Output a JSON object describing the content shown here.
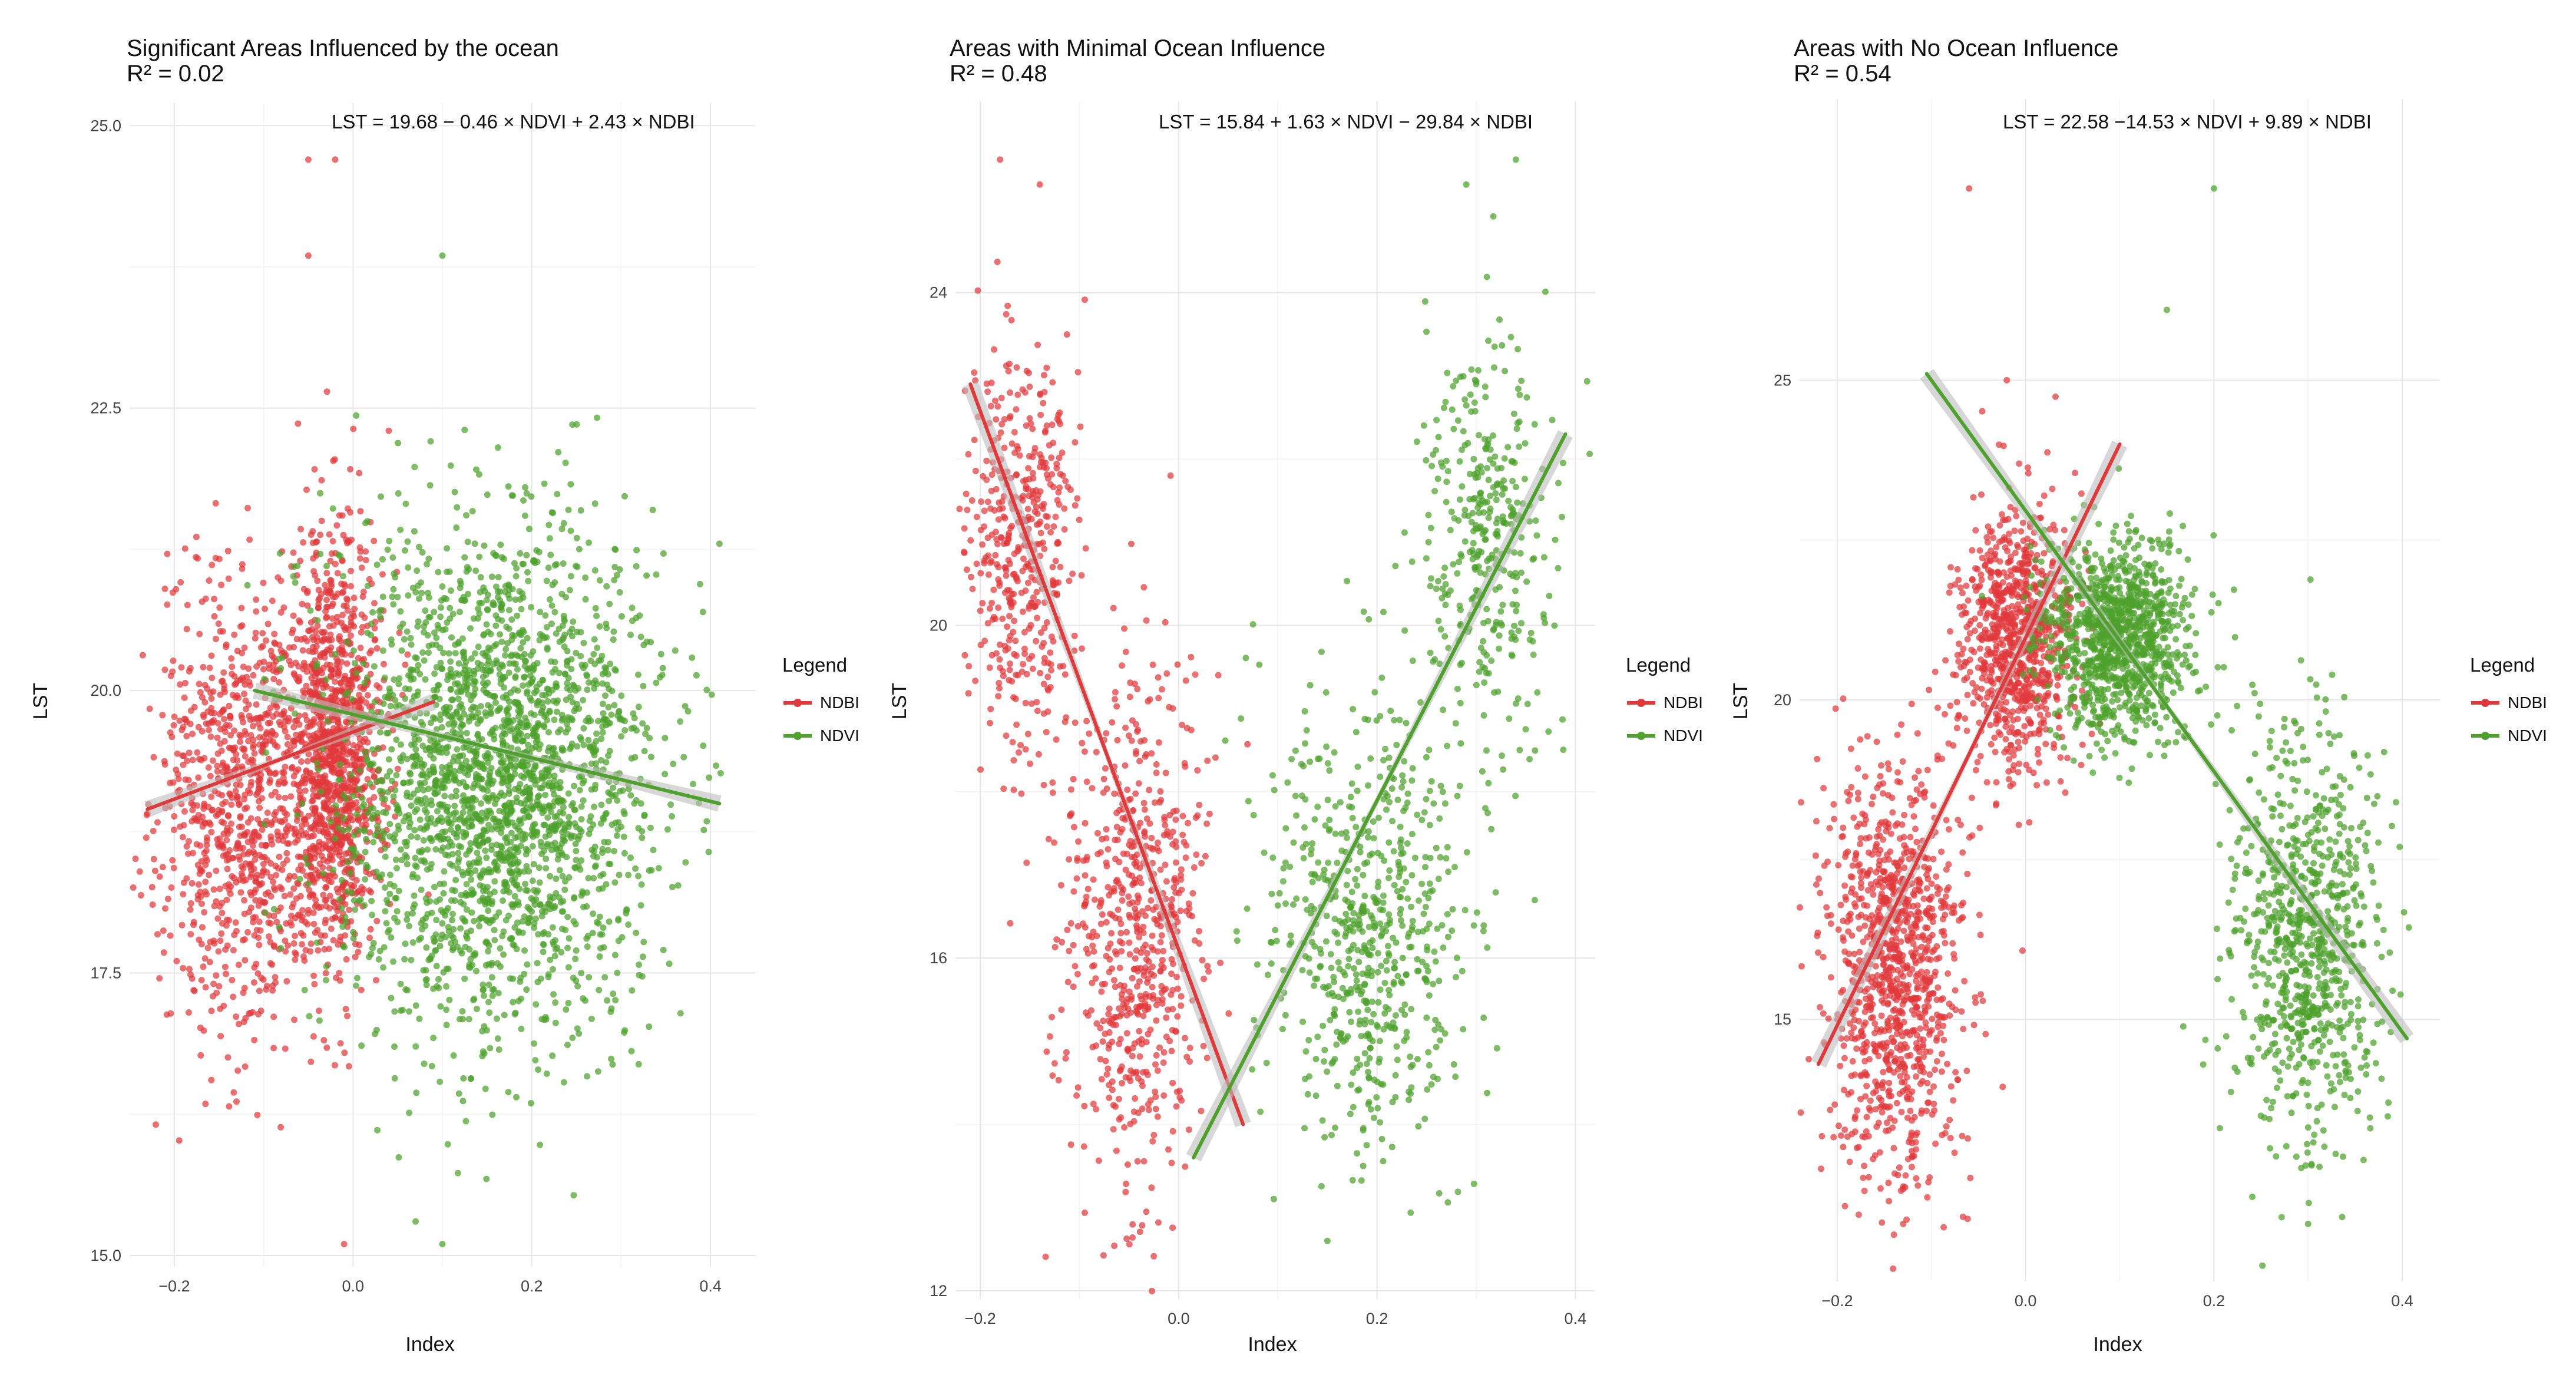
{
  "colors": {
    "ndbi": "#e0393b",
    "ndvi": "#4ea12d",
    "band": "#bdbdbd"
  },
  "chart_data": [
    {
      "type": "scatter",
      "title": "Significant Areas Influenced by the ocean",
      "subtitle": "R² = 0.02",
      "equation": "LST = 19.68 − 0.46 × NDVI + 2.43 × NDBI",
      "xlabel": "Index",
      "ylabel": "LST",
      "xlim": [
        -0.25,
        0.45
      ],
      "ylim": [
        14.9,
        25.2
      ],
      "xticks": [
        -0.2,
        0.0,
        0.2,
        0.4
      ],
      "xtick_labels": [
        "−0.2",
        "0.0",
        "0.2",
        "0.4"
      ],
      "yticks": [
        15.0,
        17.5,
        20.0,
        22.5,
        25.0
      ],
      "ytick_labels": [
        "15.0",
        "17.5",
        "20.0",
        "22.5",
        "25.0"
      ],
      "legend": {
        "title": "Legend",
        "entries": [
          "NDBI",
          "NDVI"
        ]
      },
      "series": [
        {
          "name": "NDBI",
          "color_key": "ndbi",
          "n": 2100,
          "clusters": [
            {
              "w": 0.45,
              "x": -0.12,
              "sx": 0.05,
              "y": 19.0,
              "sy": 1.0
            },
            {
              "w": 0.55,
              "x": -0.02,
              "sx": 0.025,
              "y": 19.5,
              "sy": 0.9
            }
          ],
          "outliers": [
            [
              -0.05,
              24.7
            ],
            [
              -0.02,
              24.7
            ],
            [
              -0.05,
              23.85
            ],
            [
              -0.01,
              15.1
            ],
            [
              0.04,
              22.3
            ]
          ],
          "fit": {
            "x": [
              -0.23,
              0.09
            ],
            "y": [
              18.95,
              19.9
            ]
          }
        },
        {
          "name": "NDVI",
          "color_key": "ndvi",
          "n": 2500,
          "clusters": [
            {
              "w": 1.0,
              "x": 0.16,
              "sx": 0.09,
              "y": 19.2,
              "sy": 1.1
            }
          ],
          "outliers": [
            [
              0.1,
              23.85
            ],
            [
              0.07,
              15.3
            ],
            [
              0.1,
              15.1
            ],
            [
              0.41,
              21.3
            ]
          ],
          "fit": {
            "x": [
              -0.11,
              0.41
            ],
            "y": [
              20.0,
              19.0
            ]
          }
        }
      ]
    },
    {
      "type": "scatter",
      "title": "Areas with Minimal Ocean Influence",
      "subtitle": "R² = 0.48",
      "equation": "LST = 15.84 + 1.63 × NDVI − 29.84 × NDBI",
      "xlabel": "Index",
      "ylabel": "LST",
      "xlim": [
        -0.225,
        0.42
      ],
      "ylim": [
        11.9,
        26.3
      ],
      "xticks": [
        -0.2,
        0.0,
        0.2,
        0.4
      ],
      "xtick_labels": [
        "−0.2",
        "0.0",
        "0.2",
        "0.4"
      ],
      "yticks": [
        12,
        16,
        20,
        24
      ],
      "ytick_labels": [
        "12",
        "16",
        "20",
        "24"
      ],
      "legend": {
        "title": "Legend",
        "entries": [
          "NDBI",
          "NDVI"
        ]
      },
      "series": [
        {
          "name": "NDBI",
          "color_key": "ndbi",
          "n": 1100,
          "clusters": [
            {
              "w": 0.42,
              "x": -0.16,
              "sx": 0.03,
              "y": 21.0,
              "sy": 1.3
            },
            {
              "w": 0.58,
              "x": -0.04,
              "sx": 0.035,
              "y": 16.3,
              "sy": 1.5
            }
          ],
          "outliers": [
            [
              -0.18,
              25.6
            ],
            [
              -0.14,
              25.3
            ],
            [
              0.04,
              19.4
            ]
          ],
          "fit": {
            "x": [
              -0.21,
              0.065
            ],
            "y": [
              22.9,
              14.0
            ]
          }
        },
        {
          "name": "NDVI",
          "color_key": "ndvi",
          "n": 1000,
          "clusters": [
            {
              "w": 0.62,
              "x": 0.19,
              "sx": 0.05,
              "y": 16.3,
              "sy": 1.4
            },
            {
              "w": 0.38,
              "x": 0.31,
              "sx": 0.035,
              "y": 21.0,
              "sy": 1.2
            }
          ],
          "outliers": [
            [
              0.29,
              25.3
            ],
            [
              0.34,
              25.6
            ],
            [
              0.15,
              12.6
            ]
          ],
          "fit": {
            "x": [
              0.015,
              0.39
            ],
            "y": [
              13.6,
              22.3
            ]
          }
        }
      ]
    },
    {
      "type": "scatter",
      "title": "Areas with No Ocean Influence",
      "subtitle": "R² = 0.54",
      "equation": "LST = 22.58 −14.53 × NDVI + 9.89 × NDBI",
      "xlabel": "Index",
      "ylabel": "LST",
      "xlim": [
        -0.24,
        0.44
      ],
      "ylim": [
        10.9,
        29.4
      ],
      "xticks": [
        -0.2,
        0.0,
        0.2,
        0.4
      ],
      "xtick_labels": [
        "−0.2",
        "0.0",
        "0.2",
        "0.4"
      ],
      "yticks": [
        15,
        20,
        25
      ],
      "ytick_labels": [
        "15",
        "20",
        "25"
      ],
      "legend": {
        "title": "Legend",
        "entries": [
          "NDBI",
          "NDVI"
        ]
      },
      "series": [
        {
          "name": "NDBI",
          "color_key": "ndbi",
          "n": 1900,
          "clusters": [
            {
              "w": 0.45,
              "x": -0.01,
              "sx": 0.03,
              "y": 21.0,
              "sy": 1.0
            },
            {
              "w": 0.55,
              "x": -0.14,
              "sx": 0.035,
              "y": 15.8,
              "sy": 1.6
            }
          ],
          "outliers": [
            [
              -0.06,
              28.0
            ],
            [
              -0.02,
              25.0
            ],
            [
              -0.13,
              11.8
            ]
          ],
          "fit": {
            "x": [
              -0.22,
              0.1
            ],
            "y": [
              14.3,
              24.0
            ]
          }
        },
        {
          "name": "NDVI",
          "color_key": "ndvi",
          "n": 1900,
          "clusters": [
            {
              "w": 0.55,
              "x": 0.1,
              "sx": 0.04,
              "y": 21.0,
              "sy": 0.8
            },
            {
              "w": 0.45,
              "x": 0.3,
              "sx": 0.04,
              "y": 16.2,
              "sy": 1.6
            }
          ],
          "outliers": [
            [
              0.2,
              28.0
            ],
            [
              0.15,
              26.1
            ],
            [
              0.3,
              11.8
            ]
          ],
          "fit": {
            "x": [
              -0.105,
              0.405
            ],
            "y": [
              25.1,
              14.7
            ]
          }
        }
      ]
    }
  ]
}
